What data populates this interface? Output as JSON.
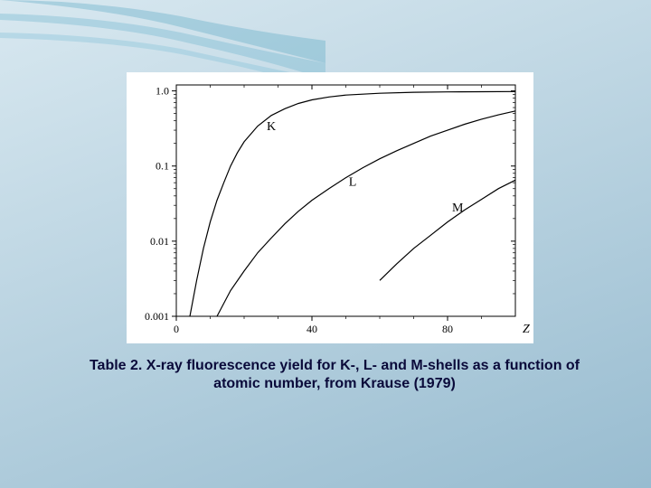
{
  "slide": {
    "background_gradient": [
      "#d8e8f0",
      "#c8dde8",
      "#b8d2e0",
      "#a8c7d8",
      "#98bcd0"
    ],
    "swoosh_color": "#58a8c4"
  },
  "chart": {
    "type": "line",
    "background_color": "#ffffff",
    "axis_color": "#000000",
    "line_color": "#000000",
    "line_width": 1.2,
    "label_fontsize": 14,
    "tick_fontsize": 12,
    "xlim": [
      0,
      100
    ],
    "ylim": [
      0.001,
      1.2
    ],
    "yscale": "log",
    "xticks": [
      0,
      40,
      80
    ],
    "yticks": [
      0.001,
      0.01,
      0.1,
      1.0
    ],
    "ytick_labels": [
      "0.001",
      "0.01",
      "0.1",
      "1.0"
    ],
    "xlabel": "Z",
    "ylabel": "",
    "series": [
      {
        "name": "K",
        "label_pos": {
          "x": 28,
          "y": 0.3
        },
        "points": [
          {
            "x": 4,
            "y": 0.001
          },
          {
            "x": 6,
            "y": 0.003
          },
          {
            "x": 8,
            "y": 0.008
          },
          {
            "x": 10,
            "y": 0.018
          },
          {
            "x": 12,
            "y": 0.035
          },
          {
            "x": 14,
            "y": 0.06
          },
          {
            "x": 16,
            "y": 0.1
          },
          {
            "x": 18,
            "y": 0.15
          },
          {
            "x": 20,
            "y": 0.21
          },
          {
            "x": 24,
            "y": 0.34
          },
          {
            "x": 28,
            "y": 0.47
          },
          {
            "x": 32,
            "y": 0.58
          },
          {
            "x": 36,
            "y": 0.68
          },
          {
            "x": 40,
            "y": 0.76
          },
          {
            "x": 45,
            "y": 0.83
          },
          {
            "x": 50,
            "y": 0.88
          },
          {
            "x": 60,
            "y": 0.93
          },
          {
            "x": 70,
            "y": 0.96
          },
          {
            "x": 80,
            "y": 0.97
          },
          {
            "x": 90,
            "y": 0.975
          },
          {
            "x": 100,
            "y": 0.98
          }
        ]
      },
      {
        "name": "L",
        "label_pos": {
          "x": 52,
          "y": 0.055
        },
        "points": [
          {
            "x": 12,
            "y": 0.001
          },
          {
            "x": 16,
            "y": 0.0022
          },
          {
            "x": 20,
            "y": 0.004
          },
          {
            "x": 24,
            "y": 0.007
          },
          {
            "x": 28,
            "y": 0.011
          },
          {
            "x": 32,
            "y": 0.017
          },
          {
            "x": 36,
            "y": 0.025
          },
          {
            "x": 40,
            "y": 0.035
          },
          {
            "x": 45,
            "y": 0.05
          },
          {
            "x": 50,
            "y": 0.07
          },
          {
            "x": 55,
            "y": 0.095
          },
          {
            "x": 60,
            "y": 0.125
          },
          {
            "x": 65,
            "y": 0.16
          },
          {
            "x": 70,
            "y": 0.2
          },
          {
            "x": 75,
            "y": 0.25
          },
          {
            "x": 80,
            "y": 0.3
          },
          {
            "x": 85,
            "y": 0.36
          },
          {
            "x": 90,
            "y": 0.42
          },
          {
            "x": 95,
            "y": 0.48
          },
          {
            "x": 100,
            "y": 0.54
          }
        ]
      },
      {
        "name": "M",
        "label_pos": {
          "x": 83,
          "y": 0.025
        },
        "points": [
          {
            "x": 60,
            "y": 0.003
          },
          {
            "x": 65,
            "y": 0.005
          },
          {
            "x": 70,
            "y": 0.008
          },
          {
            "x": 75,
            "y": 0.012
          },
          {
            "x": 80,
            "y": 0.018
          },
          {
            "x": 85,
            "y": 0.026
          },
          {
            "x": 90,
            "y": 0.036
          },
          {
            "x": 95,
            "y": 0.05
          },
          {
            "x": 100,
            "y": 0.065
          }
        ]
      }
    ]
  },
  "caption": "Table 2. X-ray fluorescence yield for K-, L- and M-shells as a function of atomic number, from Krause (1979)"
}
